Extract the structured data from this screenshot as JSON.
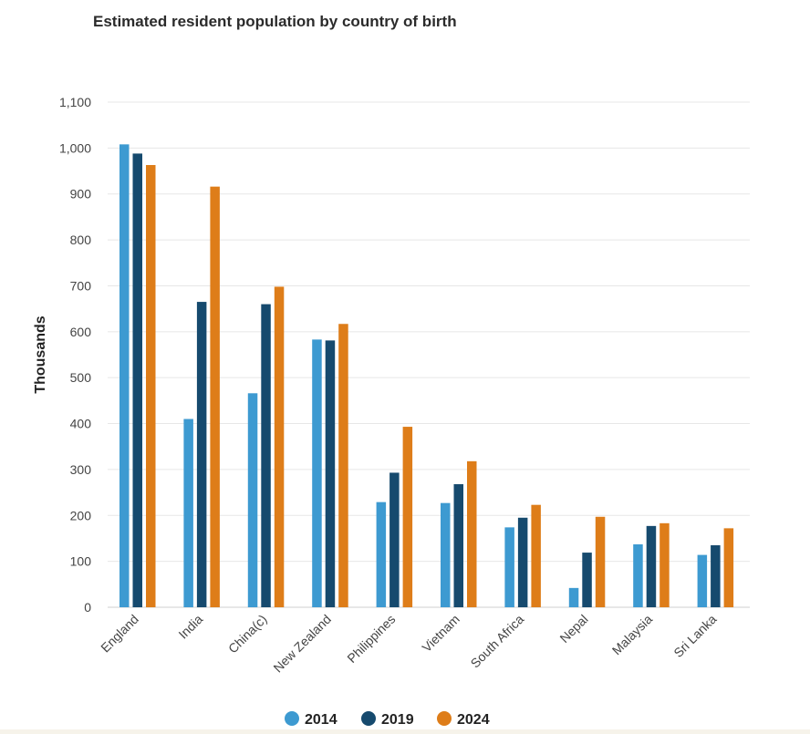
{
  "chart_data": {
    "type": "bar",
    "title": "Estimated resident population by country of birth",
    "ylabel": "Thousands",
    "xlabel": "",
    "ylim": [
      0,
      1100
    ],
    "yticks": [
      0,
      100,
      200,
      300,
      400,
      500,
      600,
      700,
      800,
      900,
      1000,
      1100
    ],
    "ytick_labels": [
      "0",
      "100",
      "200",
      "300",
      "400",
      "500",
      "600",
      "700",
      "800",
      "900",
      "1,000",
      "1,100"
    ],
    "grid": true,
    "legend_position": "bottom",
    "categories": [
      "England",
      "India",
      "China(c)",
      "New Zealand",
      "Philippines",
      "Vietnam",
      "South Africa",
      "Nepal",
      "Malaysia",
      "Sri Lanka"
    ],
    "series": [
      {
        "name": "2014",
        "color": "#3d9ad1",
        "values": [
          1008,
          410,
          466,
          583,
          229,
          227,
          174,
          42,
          137,
          114
        ]
      },
      {
        "name": "2019",
        "color": "#164a6e",
        "values": [
          988,
          665,
          660,
          581,
          293,
          268,
          195,
          119,
          177,
          135
        ]
      },
      {
        "name": "2024",
        "color": "#de7d19",
        "values": [
          963,
          916,
          698,
          617,
          393,
          318,
          223,
          197,
          183,
          172
        ]
      }
    ]
  }
}
